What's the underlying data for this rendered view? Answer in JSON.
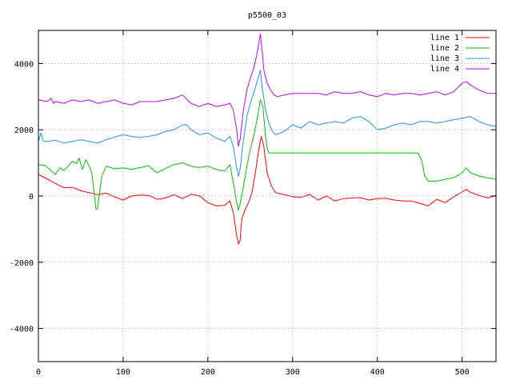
{
  "chart_data": {
    "type": "line",
    "title": "p5500_03",
    "xlabel": "",
    "ylabel": "",
    "xlim": [
      0,
      540
    ],
    "ylim": [
      -5000,
      5000
    ],
    "xticks": [
      0,
      100,
      200,
      300,
      400,
      500
    ],
    "yticks": [
      -4000,
      -2000,
      0,
      2000,
      4000
    ],
    "grid": true,
    "legend_position": "top-right",
    "series": [
      {
        "name": "line 1",
        "color": "#ff0000",
        "x": [
          0,
          10,
          20,
          30,
          40,
          50,
          60,
          70,
          80,
          90,
          100,
          110,
          120,
          130,
          140,
          150,
          160,
          170,
          180,
          190,
          200,
          210,
          220,
          226,
          230,
          234,
          236,
          238,
          240,
          244,
          248,
          252,
          256,
          260,
          263,
          266,
          270,
          275,
          280,
          290,
          300,
          310,
          320,
          330,
          340,
          350,
          360,
          370,
          380,
          390,
          400,
          410,
          420,
          430,
          440,
          450,
          460,
          470,
          480,
          490,
          500,
          505,
          510,
          520,
          530,
          540
        ],
        "y": [
          650,
          520,
          380,
          250,
          260,
          160,
          100,
          40,
          90,
          -30,
          -120,
          0,
          30,
          20,
          -100,
          -60,
          40,
          -80,
          50,
          10,
          -200,
          -300,
          -280,
          -150,
          -500,
          -1200,
          -1450,
          -1350,
          -700,
          -400,
          -200,
          100,
          700,
          1400,
          1800,
          1500,
          700,
          300,
          100,
          40,
          -20,
          -40,
          50,
          -120,
          0,
          -150,
          -80,
          -60,
          -50,
          -120,
          -80,
          -70,
          -120,
          -150,
          -150,
          -220,
          -300,
          -100,
          -200,
          -30,
          120,
          200,
          110,
          20,
          -60,
          20
        ]
      },
      {
        "name": "line 2",
        "color": "#00c000",
        "x": [
          0,
          8,
          15,
          20,
          25,
          30,
          35,
          40,
          45,
          48,
          52,
          56,
          60,
          63,
          66,
          68,
          70,
          72,
          75,
          80,
          90,
          100,
          110,
          120,
          130,
          140,
          150,
          160,
          170,
          180,
          190,
          200,
          210,
          220,
          226,
          230,
          234,
          236,
          238,
          242,
          246,
          250,
          254,
          258,
          262,
          265,
          268,
          270,
          272,
          276,
          280,
          300,
          350,
          400,
          440,
          448,
          452,
          456,
          460,
          470,
          480,
          490,
          500,
          505,
          510,
          520,
          530,
          540
        ],
        "y": [
          950,
          920,
          760,
          650,
          850,
          770,
          900,
          1050,
          980,
          1150,
          800,
          1100,
          900,
          700,
          50,
          -400,
          -380,
          80,
          600,
          900,
          820,
          850,
          800,
          860,
          910,
          700,
          830,
          950,
          1000,
          900,
          860,
          900,
          800,
          750,
          950,
          400,
          -200,
          -430,
          -250,
          300,
          900,
          1400,
          1800,
          2300,
          2900,
          2700,
          1800,
          1450,
          1300,
          1300,
          1300,
          1300,
          1300,
          1300,
          1300,
          1300,
          1100,
          600,
          450,
          450,
          500,
          550,
          700,
          850,
          700,
          600,
          550,
          500
        ]
      },
      {
        "name": "line 3",
        "color": "#1e90ff",
        "x": [
          0,
          3,
          6,
          10,
          20,
          30,
          40,
          50,
          60,
          70,
          80,
          90,
          100,
          110,
          120,
          130,
          140,
          150,
          160,
          170,
          175,
          180,
          190,
          200,
          210,
          220,
          226,
          230,
          234,
          236,
          238,
          242,
          246,
          250,
          254,
          258,
          262,
          264,
          268,
          272,
          276,
          280,
          290,
          300,
          310,
          320,
          330,
          340,
          350,
          360,
          370,
          380,
          390,
          400,
          410,
          420,
          430,
          440,
          450,
          460,
          470,
          480,
          490,
          500,
          510,
          520,
          530,
          540
        ],
        "y": [
          1650,
          1900,
          1650,
          1650,
          1680,
          1600,
          1650,
          1700,
          1650,
          1600,
          1700,
          1780,
          1850,
          1800,
          1770,
          1800,
          1850,
          1950,
          2000,
          2150,
          2150,
          2000,
          1850,
          1900,
          1750,
          1650,
          1800,
          1500,
          850,
          600,
          800,
          1700,
          2400,
          2800,
          3100,
          3450,
          3800,
          3300,
          2600,
          2200,
          1950,
          1850,
          1950,
          2150,
          2050,
          2250,
          2150,
          2200,
          2250,
          2200,
          2350,
          2400,
          2250,
          2000,
          2050,
          2150,
          2200,
          2150,
          2250,
          2250,
          2200,
          2250,
          2300,
          2350,
          2400,
          2250,
          2150,
          2100
        ]
      },
      {
        "name": "line 4",
        "color": "#c000ff",
        "x": [
          0,
          10,
          15,
          18,
          20,
          30,
          40,
          50,
          60,
          70,
          80,
          90,
          100,
          110,
          120,
          130,
          140,
          150,
          160,
          170,
          180,
          190,
          200,
          210,
          220,
          226,
          230,
          234,
          236,
          238,
          242,
          246,
          250,
          254,
          258,
          262,
          264,
          266,
          270,
          274,
          278,
          282,
          290,
          300,
          310,
          320,
          330,
          340,
          350,
          360,
          370,
          380,
          390,
          400,
          410,
          420,
          430,
          440,
          450,
          460,
          470,
          480,
          490,
          500,
          505,
          510,
          520,
          530,
          540
        ],
        "y": [
          2900,
          2850,
          2950,
          2800,
          2850,
          2800,
          2900,
          2850,
          2900,
          2800,
          2850,
          2900,
          2800,
          2750,
          2850,
          2850,
          2850,
          2900,
          2950,
          3050,
          2800,
          2700,
          2800,
          2700,
          2750,
          2800,
          2600,
          2000,
          1500,
          1700,
          2600,
          3200,
          3550,
          3850,
          4300,
          4900,
          4400,
          3800,
          3400,
          3200,
          3050,
          3000,
          3050,
          3100,
          3100,
          3100,
          3100,
          3050,
          3150,
          3100,
          3100,
          3150,
          3050,
          3000,
          3100,
          3050,
          3100,
          3100,
          3050,
          3100,
          3150,
          3050,
          3150,
          3400,
          3450,
          3350,
          3200,
          3100,
          3100
        ]
      }
    ]
  }
}
